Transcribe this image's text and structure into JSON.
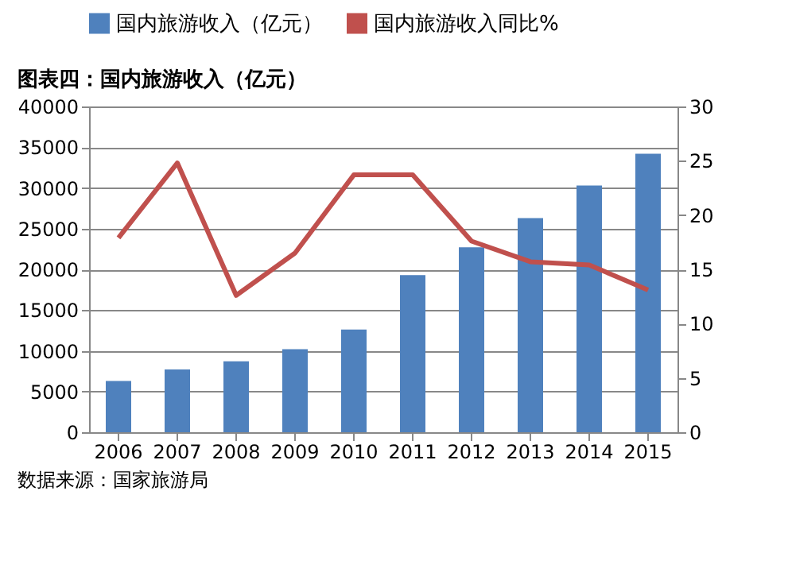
{
  "chart_data": {
    "type": "bar",
    "title": "图表四：国内旅游收入（亿元）",
    "categories": [
      "2006",
      "2007",
      "2008",
      "2009",
      "2010",
      "2011",
      "2012",
      "2013",
      "2014",
      "2015"
    ],
    "series": [
      {
        "name": "国内旅游收入（亿元）",
        "color": "#4f81bd",
        "values": [
          6300,
          7700,
          8700,
          10200,
          12600,
          19300,
          22700,
          26300,
          30300,
          34200
        ]
      },
      {
        "name": "国内旅游收入同比%",
        "type": "line",
        "axis": "y2",
        "color": "#c0504d",
        "values": [
          17.9,
          24.8,
          12.6,
          16.5,
          23.7,
          23.7,
          17.6,
          15.7,
          15.4,
          13.1
        ]
      }
    ],
    "ylim": [
      0,
      40000
    ],
    "yticks": [
      0,
      5000,
      10000,
      15000,
      20000,
      25000,
      30000,
      35000,
      40000
    ],
    "y2lim": [
      0,
      30
    ],
    "y2ticks": [
      0,
      5,
      10,
      15,
      20,
      25,
      30
    ],
    "grid": "y",
    "legend": "top",
    "line_style": "solid",
    "marker": "none",
    "annotations": [
      "数据来源：国家旅游局"
    ]
  }
}
